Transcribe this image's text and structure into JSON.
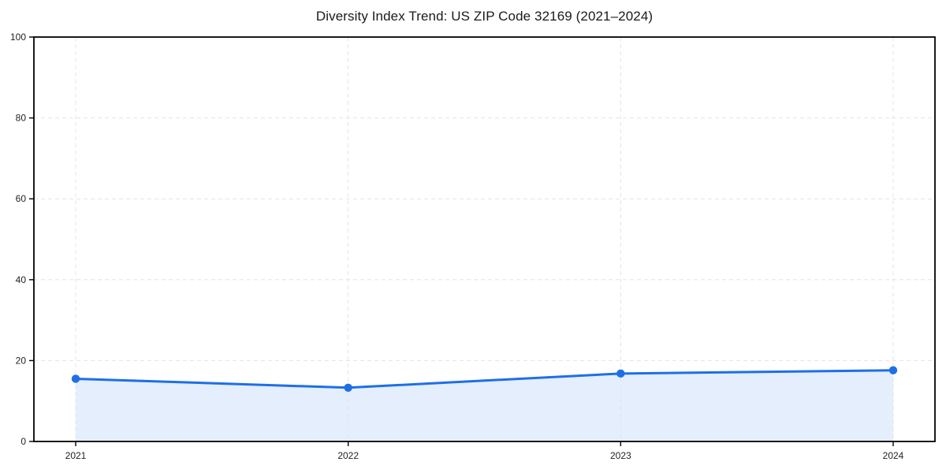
{
  "chart_data": {
    "type": "area",
    "title": "Diversity Index Trend: US ZIP Code 32169 (2021–2024)",
    "categories": [
      "2021",
      "2022",
      "2023",
      "2024"
    ],
    "series": [
      {
        "name": "Diversity Index",
        "values": [
          15.5,
          13.3,
          16.8,
          17.6
        ]
      }
    ],
    "xlabel": "",
    "ylabel": "",
    "ylim": [
      0,
      100
    ],
    "y_ticks": [
      0,
      20,
      40,
      60,
      80,
      100
    ],
    "grid": true,
    "grid_style": "dashed",
    "legend_position": "none",
    "colors": {
      "line": "#1e6fe6",
      "marker": "#1e6fe6",
      "fill": "#e4eefc",
      "grid": "#e4e4e4",
      "axis": "#000000",
      "text": "#1a1a1a",
      "background": "#ffffff"
    }
  }
}
